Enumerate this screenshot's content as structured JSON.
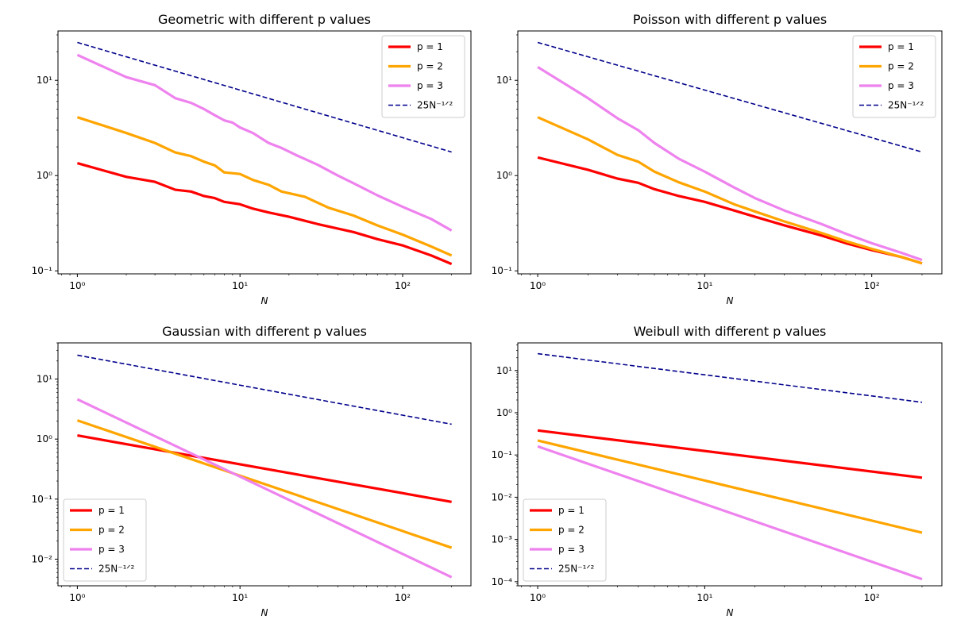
{
  "figure": {
    "background": "#ffffff"
  },
  "chart_data": [
    {
      "type": "line",
      "title": "Geometric with different p values",
      "xlabel": "N",
      "ylabel": "",
      "xscale": "log",
      "yscale": "log",
      "xlim": [
        0.76,
        263
      ],
      "ylim": [
        0.093,
        33
      ],
      "x_ticks": [
        1,
        10,
        100
      ],
      "x_tick_labels": [
        "10⁰",
        "10¹",
        "10²"
      ],
      "y_ticks": [
        0.1,
        1,
        10
      ],
      "y_tick_labels": [
        "10⁻¹",
        "10⁰",
        "10¹"
      ],
      "legend_position": "upper-right",
      "series": [
        {
          "name": "p = 1",
          "color": "#ff0000",
          "style": "solid",
          "points": [
            [
              1,
              1.35
            ],
            [
              2,
              0.97
            ],
            [
              3,
              0.86
            ],
            [
              4,
              0.71
            ],
            [
              5,
              0.68
            ],
            [
              6,
              0.61
            ],
            [
              7,
              0.58
            ],
            [
              8,
              0.53
            ],
            [
              10,
              0.5
            ],
            [
              12,
              0.45
            ],
            [
              15,
              0.41
            ],
            [
              20,
              0.37
            ],
            [
              30,
              0.31
            ],
            [
              50,
              0.255
            ],
            [
              70,
              0.215
            ],
            [
              100,
              0.185
            ],
            [
              150,
              0.145
            ],
            [
              200,
              0.118
            ]
          ]
        },
        {
          "name": "p = 2",
          "color": "#ffa500",
          "style": "solid",
          "points": [
            [
              1,
              4.1
            ],
            [
              2,
              2.8
            ],
            [
              3,
              2.2
            ],
            [
              4,
              1.75
            ],
            [
              5,
              1.6
            ],
            [
              6,
              1.4
            ],
            [
              7,
              1.28
            ],
            [
              8,
              1.08
            ],
            [
              10,
              1.04
            ],
            [
              12,
              0.9
            ],
            [
              15,
              0.8
            ],
            [
              18,
              0.68
            ],
            [
              25,
              0.6
            ],
            [
              35,
              0.46
            ],
            [
              50,
              0.38
            ],
            [
              70,
              0.3
            ],
            [
              100,
              0.24
            ],
            [
              150,
              0.18
            ],
            [
              200,
              0.145
            ]
          ]
        },
        {
          "name": "p = 3",
          "color": "#ee82ee",
          "style": "solid",
          "points": [
            [
              1,
              18.5
            ],
            [
              2,
              10.8
            ],
            [
              3,
              8.9
            ],
            [
              4,
              6.5
            ],
            [
              5,
              5.8
            ],
            [
              6,
              5.0
            ],
            [
              7,
              4.3
            ],
            [
              8,
              3.8
            ],
            [
              9,
              3.6
            ],
            [
              10,
              3.2
            ],
            [
              12,
              2.8
            ],
            [
              15,
              2.2
            ],
            [
              18,
              1.95
            ],
            [
              22,
              1.65
            ],
            [
              30,
              1.3
            ],
            [
              40,
              1.0
            ],
            [
              50,
              0.83
            ],
            [
              70,
              0.62
            ],
            [
              100,
              0.47
            ],
            [
              150,
              0.35
            ],
            [
              200,
              0.265
            ]
          ]
        },
        {
          "name": "25N⁻¹ᐟ²",
          "color": "#00008b",
          "style": "dashed",
          "points": [
            [
              1,
              25
            ],
            [
              200,
              1.768
            ]
          ]
        }
      ]
    },
    {
      "type": "line",
      "title": "Poisson with different p values",
      "xlabel": "N",
      "ylabel": "",
      "xscale": "log",
      "yscale": "log",
      "xlim": [
        0.76,
        263
      ],
      "ylim": [
        0.093,
        33
      ],
      "x_ticks": [
        1,
        10,
        100
      ],
      "x_tick_labels": [
        "10⁰",
        "10¹",
        "10²"
      ],
      "y_ticks": [
        0.1,
        1,
        10
      ],
      "y_tick_labels": [
        "10⁻¹",
        "10⁰",
        "10¹"
      ],
      "legend_position": "upper-right",
      "series": [
        {
          "name": "p = 1",
          "color": "#ff0000",
          "style": "solid",
          "points": [
            [
              1,
              1.55
            ],
            [
              2,
              1.15
            ],
            [
              3,
              0.93
            ],
            [
              4,
              0.84
            ],
            [
              5,
              0.72
            ],
            [
              7,
              0.61
            ],
            [
              10,
              0.53
            ],
            [
              15,
              0.43
            ],
            [
              20,
              0.37
            ],
            [
              30,
              0.3
            ],
            [
              50,
              0.235
            ],
            [
              70,
              0.195
            ],
            [
              100,
              0.165
            ],
            [
              150,
              0.14
            ],
            [
              200,
              0.12
            ]
          ]
        },
        {
          "name": "p = 2",
          "color": "#ffa500",
          "style": "solid",
          "points": [
            [
              1,
              4.1
            ],
            [
              2,
              2.4
            ],
            [
              3,
              1.65
            ],
            [
              4,
              1.4
            ],
            [
              5,
              1.1
            ],
            [
              7,
              0.85
            ],
            [
              10,
              0.68
            ],
            [
              15,
              0.5
            ],
            [
              20,
              0.42
            ],
            [
              30,
              0.33
            ],
            [
              50,
              0.25
            ],
            [
              70,
              0.205
            ],
            [
              100,
              0.17
            ],
            [
              150,
              0.14
            ],
            [
              200,
              0.12
            ]
          ]
        },
        {
          "name": "p = 3",
          "color": "#ee82ee",
          "style": "solid",
          "points": [
            [
              1,
              13.8
            ],
            [
              2,
              6.5
            ],
            [
              3,
              4.0
            ],
            [
              4,
              3.0
            ],
            [
              5,
              2.2
            ],
            [
              7,
              1.5
            ],
            [
              10,
              1.1
            ],
            [
              15,
              0.75
            ],
            [
              20,
              0.58
            ],
            [
              30,
              0.43
            ],
            [
              50,
              0.31
            ],
            [
              70,
              0.245
            ],
            [
              100,
              0.195
            ],
            [
              150,
              0.155
            ],
            [
              200,
              0.13
            ]
          ]
        },
        {
          "name": "25N⁻¹ᐟ²",
          "color": "#00008b",
          "style": "dashed",
          "points": [
            [
              1,
              25
            ],
            [
              200,
              1.768
            ]
          ]
        }
      ]
    },
    {
      "type": "line",
      "title": "Gaussian with different p values",
      "xlabel": "N",
      "ylabel": "",
      "xscale": "log",
      "yscale": "log",
      "xlim": [
        0.76,
        263
      ],
      "ylim": [
        0.0036,
        40
      ],
      "x_ticks": [
        1,
        10,
        100
      ],
      "x_tick_labels": [
        "10⁰",
        "10¹",
        "10²"
      ],
      "y_ticks": [
        0.01,
        0.1,
        1,
        10
      ],
      "y_tick_labels": [
        "10⁻²",
        "10⁻¹",
        "10⁰",
        "10¹"
      ],
      "legend_position": "lower-left",
      "series": [
        {
          "name": "p = 1",
          "color": "#ff0000",
          "style": "solid",
          "points": [
            [
              1,
              1.15
            ],
            [
              200,
              0.09
            ]
          ]
        },
        {
          "name": "p = 2",
          "color": "#ffa500",
          "style": "solid",
          "points": [
            [
              1,
              2.05
            ],
            [
              200,
              0.0155
            ]
          ]
        },
        {
          "name": "p = 3",
          "color": "#ee82ee",
          "style": "solid",
          "points": [
            [
              1,
              4.6
            ],
            [
              200,
              0.005
            ]
          ]
        },
        {
          "name": "25N⁻¹ᐟ²",
          "color": "#00008b",
          "style": "dashed",
          "points": [
            [
              1,
              25
            ],
            [
              200,
              1.768
            ]
          ]
        }
      ]
    },
    {
      "type": "line",
      "title": "Weibull with different p values",
      "xlabel": "N",
      "ylabel": "",
      "xscale": "log",
      "yscale": "log",
      "xlim": [
        0.76,
        263
      ],
      "ylim": [
        8e-05,
        45
      ],
      "x_ticks": [
        1,
        10,
        100
      ],
      "x_tick_labels": [
        "10⁰",
        "10¹",
        "10²"
      ],
      "y_ticks": [
        0.0001,
        0.001,
        0.01,
        0.1,
        1,
        10
      ],
      "y_tick_labels": [
        "10⁻⁴",
        "10⁻³",
        "10⁻²",
        "10⁻¹",
        "10⁰",
        "10¹"
      ],
      "legend_position": "lower-left",
      "series": [
        {
          "name": "p = 1",
          "color": "#ff0000",
          "style": "solid",
          "points": [
            [
              1,
              0.38
            ],
            [
              200,
              0.029
            ]
          ]
        },
        {
          "name": "p = 2",
          "color": "#ffa500",
          "style": "solid",
          "points": [
            [
              1,
              0.22
            ],
            [
              200,
              0.00145
            ]
          ]
        },
        {
          "name": "p = 3",
          "color": "#ee82ee",
          "style": "solid",
          "points": [
            [
              1,
              0.16
            ],
            [
              200,
              0.000115
            ]
          ]
        },
        {
          "name": "25N⁻¹ᐟ²",
          "color": "#00008b",
          "style": "dashed",
          "points": [
            [
              1,
              25
            ],
            [
              200,
              1.768
            ]
          ]
        }
      ]
    }
  ]
}
